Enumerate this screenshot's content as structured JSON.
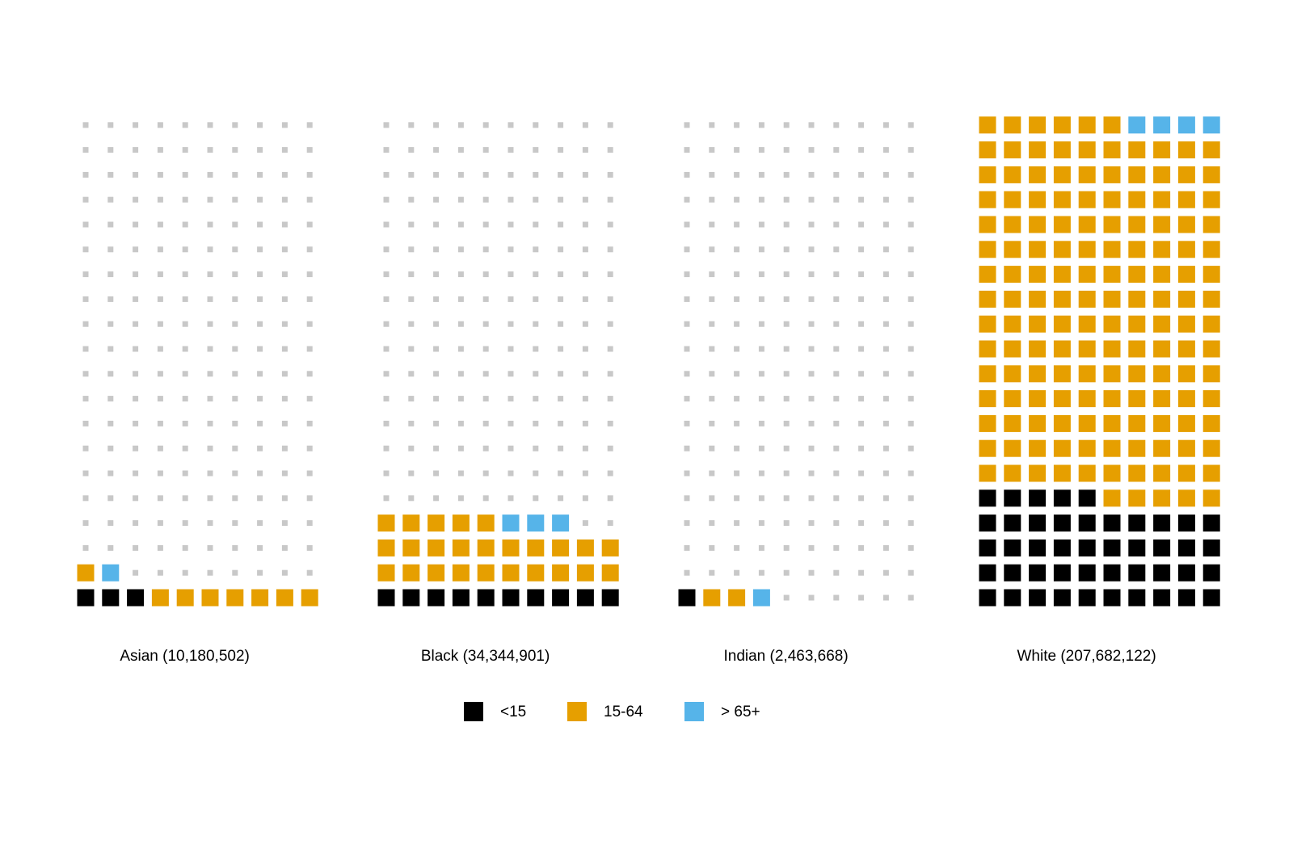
{
  "chart_data": {
    "type": "waffle",
    "categories": [
      "Asian (10,180,502)",
      "Black (34,344,901)",
      "Indian (2,463,668)",
      "White (207,682,122)"
    ],
    "series": [
      {
        "name": "<15",
        "color": "#000000",
        "values": [
          3,
          10,
          1,
          45
        ]
      },
      {
        "name": "15-64",
        "color": "#e69f00",
        "values": [
          8,
          25,
          2,
          151
        ]
      },
      {
        "name": "> 65+",
        "color": "#56b4e9",
        "values": [
          1,
          3,
          1,
          4
        ]
      }
    ]
  }
}
